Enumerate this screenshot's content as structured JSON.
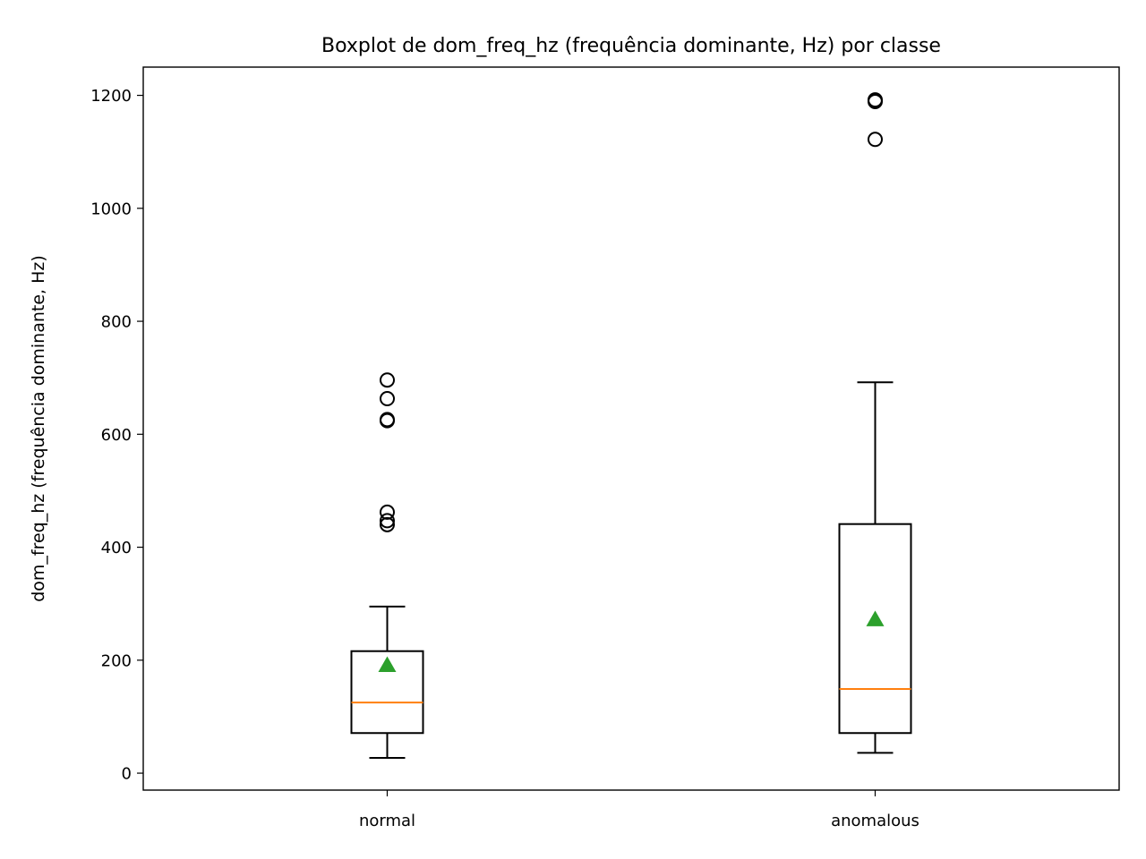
{
  "chart_data": {
    "type": "boxplot",
    "title": "Boxplot de dom_freq_hz (frequência dominante, Hz) por classe",
    "xlabel": "",
    "ylabel": "dom_freq_hz (frequência dominante, Hz)",
    "ylim": [
      -30,
      1250
    ],
    "yticks": [
      0,
      200,
      400,
      600,
      800,
      1000,
      1200
    ],
    "grid": false,
    "categories": [
      "normal",
      "anomalous"
    ],
    "boxes": [
      {
        "category": "normal",
        "whisker_low": 27,
        "q1": 71,
        "median": 125,
        "q3": 216,
        "whisker_high": 295,
        "mean": 191,
        "outliers": [
          440,
          447,
          462,
          624,
          626,
          663,
          696
        ]
      },
      {
        "category": "anomalous",
        "whisker_low": 36,
        "q1": 71,
        "median": 149,
        "q3": 441,
        "whisker_high": 692,
        "mean": 272,
        "outliers": [
          1122,
          1189,
          1192
        ]
      }
    ],
    "colors": {
      "box": "#000000",
      "median": "#ff7f0e",
      "mean": "#2ca02c",
      "outlier_edge": "#000000"
    }
  }
}
